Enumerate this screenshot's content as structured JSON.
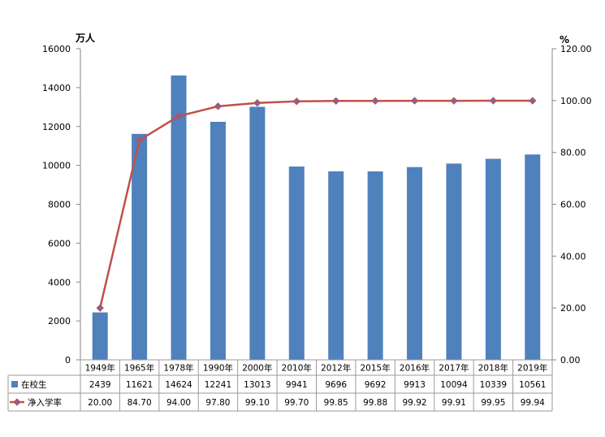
{
  "chart_data": {
    "type": "bar",
    "title": "",
    "categories": [
      "1949年",
      "1965年",
      "1978年",
      "1990年",
      "2000年",
      "2010年",
      "2012年",
      "2015年",
      "2016年",
      "2017年",
      "2018年",
      "2019年"
    ],
    "y_left_unit": "万人",
    "y_right_unit": "%",
    "y_left_range": [
      0,
      16000
    ],
    "y_left_ticks": [
      "0",
      "2000",
      "4000",
      "6000",
      "8000",
      "10000",
      "12000",
      "14000",
      "16000"
    ],
    "y_right_range": [
      0,
      120
    ],
    "y_right_ticks": [
      "0.00",
      "20.00",
      "40.00",
      "60.00",
      "80.00",
      "100.00",
      "120.00"
    ],
    "grid": false,
    "legend": "in-table",
    "series": [
      {
        "name": "在校生",
        "type": "bar",
        "axis": "left",
        "color": "#4f81bd",
        "values": [
          2439,
          11621,
          14624,
          12241,
          13013,
          9941,
          9696,
          9692,
          9913,
          10094,
          10339,
          10561
        ],
        "labels": [
          "2439",
          "11621",
          "14624",
          "12241",
          "13013",
          "9941",
          "9696",
          "9692",
          "9913",
          "10094",
          "10339",
          "10561"
        ]
      },
      {
        "name": "净入学率",
        "type": "line",
        "axis": "right",
        "color": "#c0504d",
        "marker_color": "#8064a2",
        "values": [
          20.0,
          84.7,
          94.0,
          97.8,
          99.1,
          99.7,
          99.85,
          99.88,
          99.92,
          99.91,
          99.95,
          99.94
        ],
        "labels": [
          "20.00",
          "84.70",
          "94.00",
          "97.80",
          "99.10",
          "99.70",
          "99.85",
          "99.88",
          "99.92",
          "99.91",
          "99.95",
          "99.94"
        ]
      }
    ]
  }
}
